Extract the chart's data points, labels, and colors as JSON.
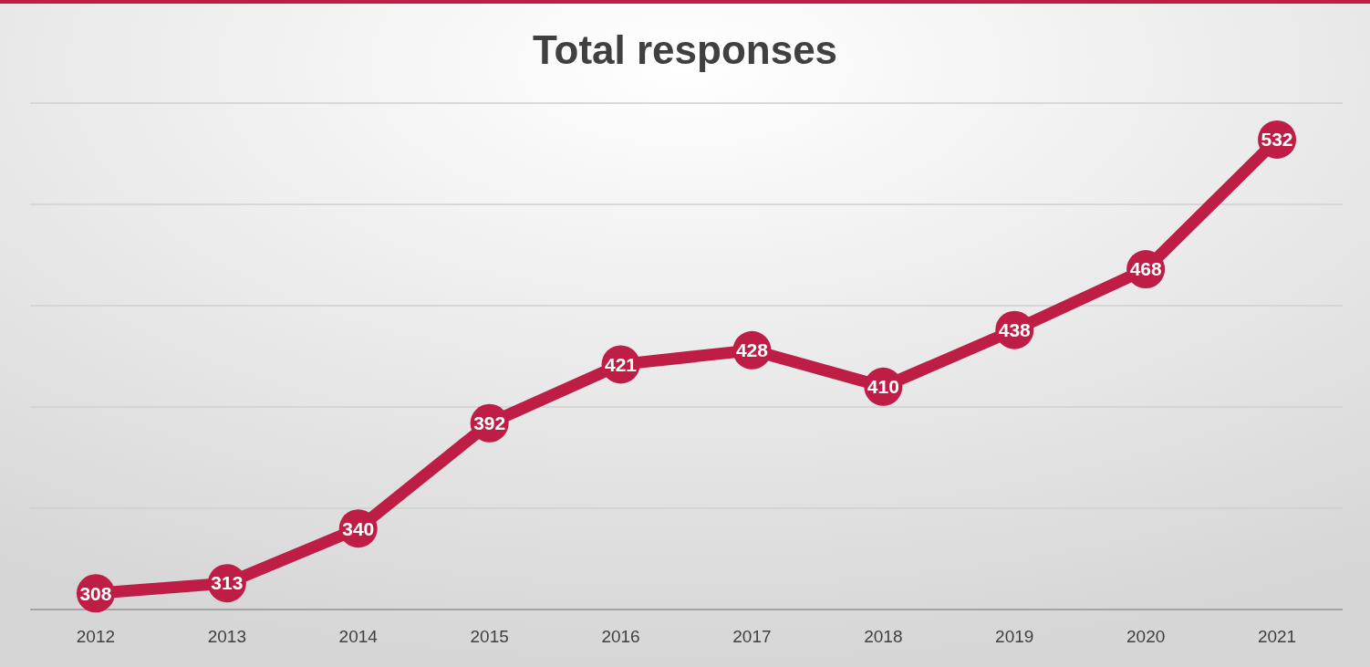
{
  "chart_data": {
    "type": "line",
    "title": "Total responses",
    "categories": [
      "2012",
      "2013",
      "2014",
      "2015",
      "2016",
      "2017",
      "2018",
      "2019",
      "2020",
      "2021"
    ],
    "series": [
      {
        "color": "#be1e45",
        "values": [
          308,
          313,
          340,
          392,
          421,
          428,
          410,
          438,
          468,
          532
        ]
      }
    ],
    "ylim": [
      300,
      550
    ],
    "yticks": [
      {
        "value": 300,
        "label": null
      },
      {
        "value": 350,
        "label": null
      },
      {
        "value": 400,
        "label": null
      },
      {
        "value": 450,
        "label": null
      },
      {
        "value": 500,
        "label": null
      },
      {
        "value": 550,
        "label": null
      }
    ],
    "grid": "y",
    "tick_labels": "x",
    "marker": "circle",
    "line_style": "solid",
    "data_labels": true
  }
}
